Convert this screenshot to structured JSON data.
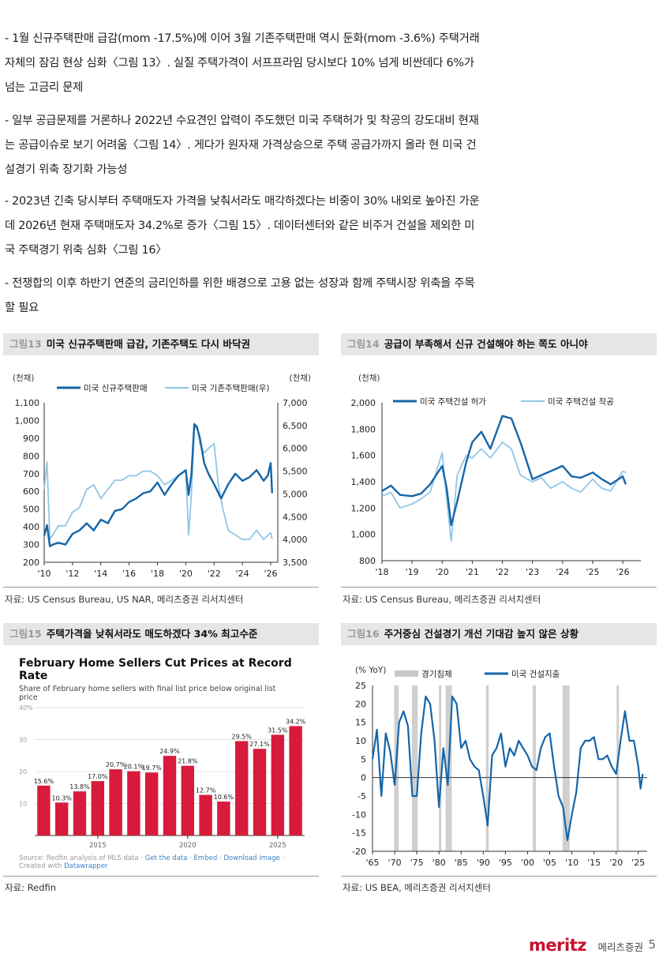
{
  "paragraphs": [
    "- 1월 신규주택판매 급감(mom -17.5%)에 이어 3월 기존주택판매 역시 둔화(mom -3.6%) 주택거래 자체의 잠김 현상 심화〈그림 13〉. 실질 주택가격이 서프프라임 당시보다 10% 넘게 비싼데다 6%가 넘는 고금리 문제",
    "- 일부 공급문제를 거론하나 2022년 수요견인 압력이 주도했던 미국 주택허가 및 착공의 강도대비 현재는 공급이슈로 보기 어려움〈그림 14〉. 게다가 원자재 가격상승으로 주택 공급가까지 올라 현 미국 건설경기 위축 장기화 가능성",
    "- 2023년 긴축 당시부터 주택매도자 가격을 낮춰서라도 매각하겠다는 비중이 30% 내외로 높아진 가운데 2026년 현재 주택매도자 34.2%로 증가〈그림 15〉. 데이터센터와 같은 비주거 건설을 제외한 미국 주택경기 위축 심화〈그림 16〉",
    "- 전쟁합의 이후 하반기 연준의 금리인하를 위한 배경으로 고용 없는 성장과 함께 주택시장 위축을 주목할 필요"
  ],
  "fig13": {
    "num": "그림13",
    "title": "미국 신규주택판매 급감, 기존주택도 다시 바닥권",
    "source": "자료: US Census Bureau, US NAR, 메리츠증권 리서치센터",
    "chart_data": {
      "type": "line",
      "left_unit": "(천채)",
      "right_unit": "(천채)",
      "left_ylim": [
        200,
        1100
      ],
      "right_ylim": [
        3500,
        7000
      ],
      "left_ticks": [
        "1,100",
        "1,000",
        "900",
        "800",
        "700",
        "600",
        "500",
        "400",
        "300",
        "200"
      ],
      "right_ticks": [
        "7,000",
        "6,500",
        "6,000",
        "5,500",
        "5,000",
        "4,500",
        "4,000",
        "3,500"
      ],
      "x_ticks": [
        "'10",
        "'12",
        "'14",
        "'16",
        "'18",
        "'20",
        "'22",
        "'24",
        "'26"
      ],
      "x_range": [
        2010,
        2026.5
      ],
      "grid": false,
      "legend_position": "top",
      "series": [
        {
          "name": "미국 신규주택판매",
          "axis": "left",
          "color": "#1565a8",
          "x": [
            2010,
            2010.2,
            2010.4,
            2010.6,
            2011,
            2011.5,
            2012,
            2012.5,
            2013,
            2013.5,
            2014,
            2014.5,
            2015,
            2015.5,
            2016,
            2016.5,
            2017,
            2017.5,
            2018,
            2018.5,
            2019,
            2019.5,
            2020,
            2020.2,
            2020.4,
            2020.6,
            2020.8,
            2021,
            2021.3,
            2021.6,
            2022,
            2022.5,
            2023,
            2023.5,
            2024,
            2024.5,
            2025,
            2025.5,
            2025.8,
            2026,
            2026.1
          ],
          "y": [
            350,
            410,
            290,
            300,
            310,
            300,
            360,
            380,
            420,
            380,
            440,
            420,
            490,
            500,
            540,
            560,
            590,
            600,
            650,
            580,
            640,
            690,
            720,
            580,
            700,
            980,
            960,
            900,
            760,
            700,
            640,
            560,
            640,
            700,
            660,
            680,
            720,
            660,
            690,
            760,
            590
          ]
        },
        {
          "name": "미국 기존주택판매(우)",
          "axis": "right",
          "color": "#8fc7e6",
          "x": [
            2010,
            2010.2,
            2010.4,
            2010.6,
            2011,
            2011.5,
            2012,
            2012.5,
            2013,
            2013.5,
            2014,
            2014.5,
            2015,
            2015.5,
            2016,
            2016.5,
            2017,
            2017.5,
            2018,
            2018.5,
            2019,
            2019.5,
            2020,
            2020.2,
            2020.4,
            2020.6,
            2020.8,
            2021,
            2021.3,
            2021.6,
            2022,
            2022.3,
            2022.6,
            2023,
            2023.5,
            2024,
            2024.5,
            2025,
            2025.5,
            2026,
            2026.1
          ],
          "y": [
            5100,
            5700,
            4000,
            4100,
            4300,
            4300,
            4600,
            4700,
            5100,
            5200,
            4900,
            5100,
            5300,
            5300,
            5400,
            5400,
            5500,
            5500,
            5400,
            5200,
            5300,
            5400,
            5500,
            4100,
            5000,
            6400,
            6500,
            6100,
            5900,
            6000,
            6100,
            5200,
            4700,
            4200,
            4100,
            4000,
            4000,
            4200,
            4000,
            4150,
            4000
          ]
        }
      ]
    }
  },
  "fig14": {
    "num": "그림14",
    "title": "공급이 부족해서 신규 건설해야 하는 쪽도 아니야",
    "source": "자료: US Census Bureau, 메리츠증권 리서치센터",
    "chart_data": {
      "type": "line",
      "unit": "(천채)",
      "ylim": [
        800,
        2000
      ],
      "y_ticks": [
        "2,000",
        "1,800",
        "1,600",
        "1,400",
        "1,200",
        "1,000",
        "800"
      ],
      "x_ticks": [
        "'18",
        "'19",
        "'20",
        "'21",
        "'22",
        "'23",
        "'24",
        "'25",
        "'26"
      ],
      "x_range": [
        2018,
        2026.6
      ],
      "grid": false,
      "legend_position": "top",
      "series": [
        {
          "name": "미국 주택건설 허가",
          "color": "#1565a8",
          "x": [
            2018,
            2018.3,
            2018.6,
            2019,
            2019.3,
            2019.6,
            2020,
            2020.15,
            2020.3,
            2020.5,
            2020.8,
            2021,
            2021.3,
            2021.6,
            2022,
            2022.3,
            2022.6,
            2023,
            2023.3,
            2023.6,
            2024,
            2024.3,
            2024.6,
            2025,
            2025.3,
            2025.6,
            2026,
            2026.1
          ],
          "y": [
            1330,
            1370,
            1300,
            1290,
            1310,
            1380,
            1520,
            1350,
            1070,
            1250,
            1550,
            1700,
            1780,
            1650,
            1900,
            1880,
            1700,
            1420,
            1450,
            1480,
            1520,
            1440,
            1430,
            1470,
            1420,
            1380,
            1440,
            1380
          ]
        },
        {
          "name": "미국 주택건설 착공",
          "color": "#8fc7e6",
          "x": [
            2018,
            2018.3,
            2018.6,
            2019,
            2019.3,
            2019.6,
            2020,
            2020.15,
            2020.3,
            2020.5,
            2020.8,
            2021,
            2021.3,
            2021.6,
            2022,
            2022.3,
            2022.6,
            2023,
            2023.3,
            2023.6,
            2024,
            2024.3,
            2024.6,
            2025,
            2025.3,
            2025.6,
            2026,
            2026.1
          ],
          "y": [
            1290,
            1320,
            1200,
            1230,
            1270,
            1320,
            1620,
            1270,
            950,
            1450,
            1600,
            1580,
            1650,
            1580,
            1700,
            1650,
            1450,
            1400,
            1430,
            1350,
            1400,
            1350,
            1320,
            1420,
            1350,
            1330,
            1480,
            1470
          ]
        }
      ]
    }
  },
  "fig15": {
    "num": "그림15",
    "title": "주택가격을 낮춰서라도 매도하겠다 34% 최고수준",
    "source": "자료: Redfin",
    "chart_title": "February Home Sellers Cut Prices at Record Rate",
    "chart_subtitle": "Share of February home sellers with final list price below original list price",
    "chart_footer_a": "Source: Redfin analysis of MLS data · ",
    "chart_footer_links": "Get the data · Embed · Download image",
    "chart_footer_b": " · Created with ",
    "chart_footer_brand": "Datawrapper",
    "chart_data": {
      "type": "bar",
      "color": "#d81b3c",
      "ylim": [
        0,
        40
      ],
      "y_ticks": [
        "40%",
        "30",
        "20",
        "10"
      ],
      "x_ticks": [
        "2015",
        "2020",
        "2025"
      ],
      "categories": [
        "2012",
        "2013",
        "2014",
        "2015",
        "2016",
        "2017",
        "2018",
        "2019",
        "2020",
        "2021",
        "2022",
        "2023",
        "2024",
        "2025",
        "2026"
      ],
      "values": [
        15.6,
        10.3,
        13.8,
        17.0,
        20.7,
        20.1,
        19.7,
        24.9,
        21.8,
        12.7,
        10.6,
        29.5,
        27.1,
        31.5,
        34.2
      ],
      "labels": [
        "15.6%",
        "10.3%",
        "13.8%",
        "17.0%",
        "20.7%",
        "20.1%",
        "19.7%",
        "24.9%",
        "21.8%",
        "12.7%",
        "10.6%",
        "29.5%",
        "27.1%",
        "31.5%",
        "34.2%"
      ]
    }
  },
  "fig16": {
    "num": "그림16",
    "title": "주거중심 건설경기 개선 기대감 높지 않은 상황",
    "source": "자료: US BEA, 메리츠증권 리서치센터",
    "chart_data": {
      "type": "line",
      "unit": "(% YoY)",
      "ylim": [
        -20,
        25
      ],
      "y_ticks": [
        "25",
        "20",
        "15",
        "10",
        "5",
        "0",
        "-5",
        "-10",
        "-15",
        "-20"
      ],
      "x_ticks": [
        "'65",
        "'70",
        "'75",
        "'80",
        "'85",
        "'90",
        "'95",
        "'00",
        "'05",
        "'10",
        "'15",
        "'20",
        "'25"
      ],
      "x_range": [
        1965,
        2027
      ],
      "grid": false,
      "legend_position": "top",
      "recession_label": "경기침체",
      "recessions": [
        [
          1969.9,
          1970.9
        ],
        [
          1973.9,
          1975.2
        ],
        [
          1980.0,
          1980.5
        ],
        [
          1981.5,
          1982.9
        ],
        [
          1990.6,
          1991.2
        ],
        [
          2001.2,
          2001.9
        ],
        [
          2007.9,
          2009.5
        ],
        [
          2020.1,
          2020.4
        ]
      ],
      "series": [
        {
          "name": "미국 건설지출",
          "color": "#1565a8",
          "x": [
            1965,
            1966,
            1967,
            1968,
            1969,
            1970,
            1971,
            1972,
            1973,
            1974,
            1975,
            1976,
            1977,
            1978,
            1979,
            1980,
            1981,
            1982,
            1983,
            1984,
            1985,
            1986,
            1987,
            1988,
            1989,
            1990,
            1991,
            1992,
            1993,
            1994,
            1995,
            1996,
            1997,
            1998,
            1999,
            2000,
            2001,
            2002,
            2003,
            2004,
            2005,
            2006,
            2007,
            2008,
            2009,
            2010,
            2011,
            2012,
            2013,
            2014,
            2015,
            2016,
            2017,
            2018,
            2019,
            2020,
            2021,
            2022,
            2023,
            2024,
            2025,
            2025.5,
            2026
          ],
          "y": [
            5,
            13,
            -5,
            12,
            7,
            -2,
            15,
            18,
            14,
            -5,
            -5,
            12,
            22,
            20,
            10,
            -8,
            8,
            -2,
            22,
            20,
            8,
            10,
            5,
            3,
            2,
            -5,
            -13,
            6,
            8,
            12,
            3,
            8,
            6,
            10,
            8,
            6,
            3,
            2,
            8,
            11,
            12,
            3,
            -5,
            -8,
            -17,
            -10,
            -4,
            8,
            10,
            10,
            11,
            5,
            5,
            6,
            3,
            1,
            10,
            18,
            10,
            10,
            3,
            -3,
            1
          ]
        }
      ]
    }
  },
  "footer": {
    "logo": "meritz",
    "logo_kr": "메리츠증권",
    "page": "5"
  }
}
